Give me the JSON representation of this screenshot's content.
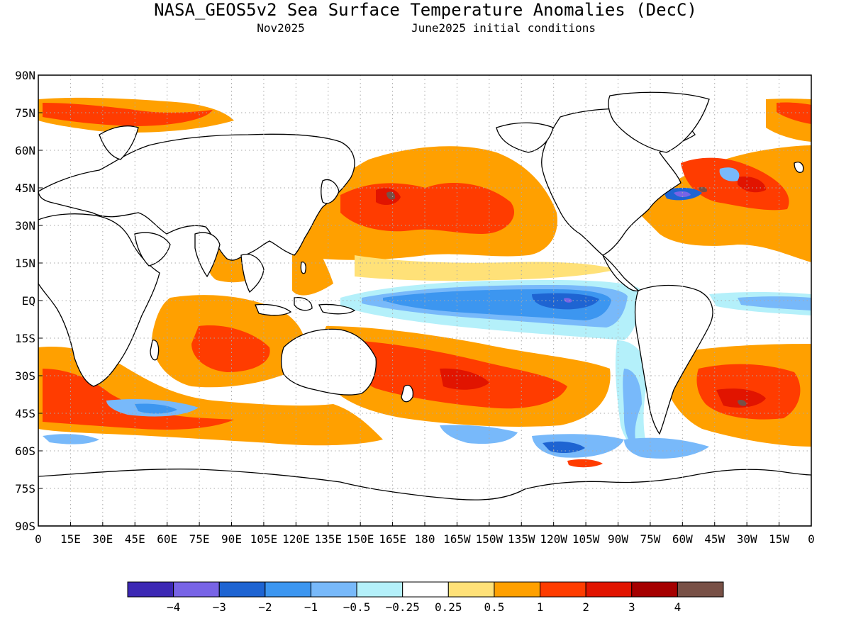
{
  "title": "NASA_GEOS5v2 Sea Surface Temperature Anomalies (DecC)",
  "subtitle_left": "Nov2025",
  "subtitle_right": "June2025 initial conditions",
  "lat_labels": [
    "90N",
    "75N",
    "60N",
    "45N",
    "30N",
    "15N",
    "EQ",
    "15S",
    "30S",
    "45S",
    "60S",
    "75S",
    "90S"
  ],
  "lon_labels": [
    "0",
    "15E",
    "30E",
    "45E",
    "60E",
    "75E",
    "90E",
    "105E",
    "120E",
    "135E",
    "150E",
    "165E",
    "180",
    "165W",
    "150W",
    "135W",
    "120W",
    "105W",
    "90W",
    "75W",
    "60W",
    "45W",
    "30W",
    "15W",
    "0"
  ],
  "colorbar": {
    "colors": [
      "#3c28b4",
      "#7864e6",
      "#1e64d2",
      "#3c96f0",
      "#78b9fa",
      "#b4f0fa",
      "#ffffff",
      "#ffe178",
      "#ffa000",
      "#ff3c00",
      "#e11400",
      "#a50000",
      "#785046"
    ],
    "labels": [
      "−4",
      "−3",
      "−2",
      "−1",
      "−0.5",
      "−0.25",
      "0.25",
      "0.5",
      "1",
      "2",
      "3",
      "4"
    ]
  }
}
